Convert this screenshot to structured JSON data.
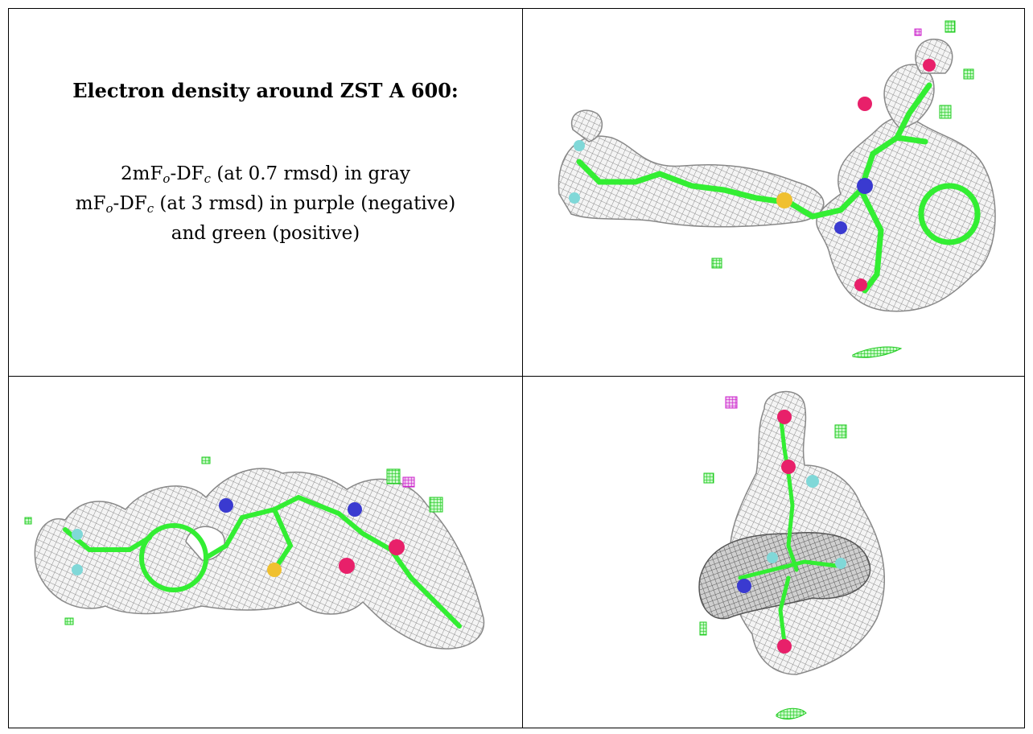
{
  "title": "Electron density around ZST A 600:",
  "legend": {
    "line1_prefix": "2mF",
    "line1_sub1": "o",
    "line1_mid": "-DF",
    "line1_sub2": "c",
    "line1_suffix": " (at 0.7 rmsd) in gray",
    "line2_prefix": "mF",
    "line2_sub1": "o",
    "line2_mid": "-DF",
    "line2_sub2": "c",
    "line2_suffix": " (at 3 rmsd) in purple (negative)",
    "line3": "and green (positive)"
  },
  "colors": {
    "mesh_gray": "#9a9a9a",
    "carbon_green": "#33ee33",
    "oxygen": "#e8206a",
    "nitrogen": "#3a3ad0",
    "sulfur": "#f0c030",
    "fluorine": "#80d8d8",
    "negative_density": "#d020d0",
    "positive_density": "#22dd22"
  }
}
